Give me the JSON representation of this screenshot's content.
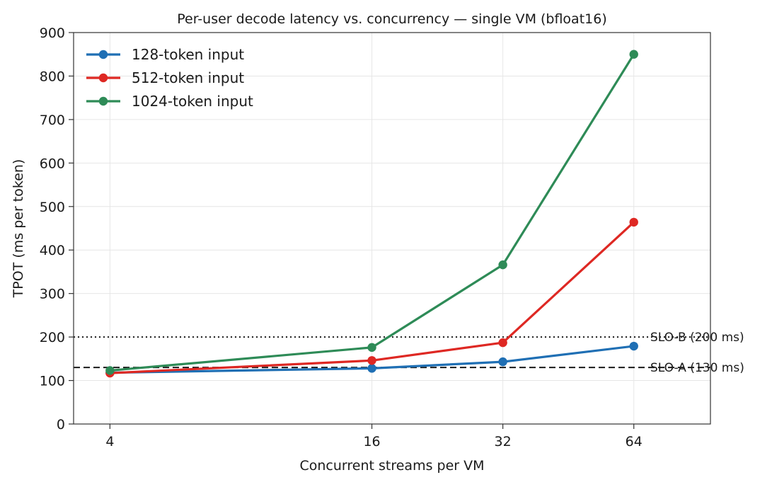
{
  "chart_data": {
    "type": "line",
    "title": "Per-user decode latency vs. concurrency — single VM (bfloat16)",
    "xlabel": "Concurrent streams per VM",
    "ylabel": "TPOT (ms per token)",
    "x_scale": "log2",
    "x": [
      4,
      16,
      32,
      64
    ],
    "x_tick_labels": [
      "4",
      "16",
      "32",
      "64"
    ],
    "xlim": [
      3.3,
      96
    ],
    "ylim": [
      0,
      900
    ],
    "y_ticks": [
      0,
      100,
      200,
      300,
      400,
      500,
      600,
      700,
      800,
      900
    ],
    "grid": true,
    "legend_position": "upper-left",
    "series": [
      {
        "name": "128-token input",
        "color": "#1f6fb4",
        "values": [
          118,
          128,
          143,
          179
        ]
      },
      {
        "name": "512-token input",
        "color": "#de2823",
        "values": [
          117,
          146,
          187,
          464
        ]
      },
      {
        "name": "1024-token input",
        "color": "#2e8b57",
        "values": [
          123,
          176,
          366,
          850
        ]
      }
    ],
    "reference_lines": [
      {
        "label": "SLO-B (200 ms)",
        "value": 200,
        "style": "dotted",
        "color": "#1a1a1a"
      },
      {
        "label": "SLO-A (130 ms)",
        "value": 130,
        "style": "dashed",
        "color": "#1a1a1a"
      }
    ]
  }
}
